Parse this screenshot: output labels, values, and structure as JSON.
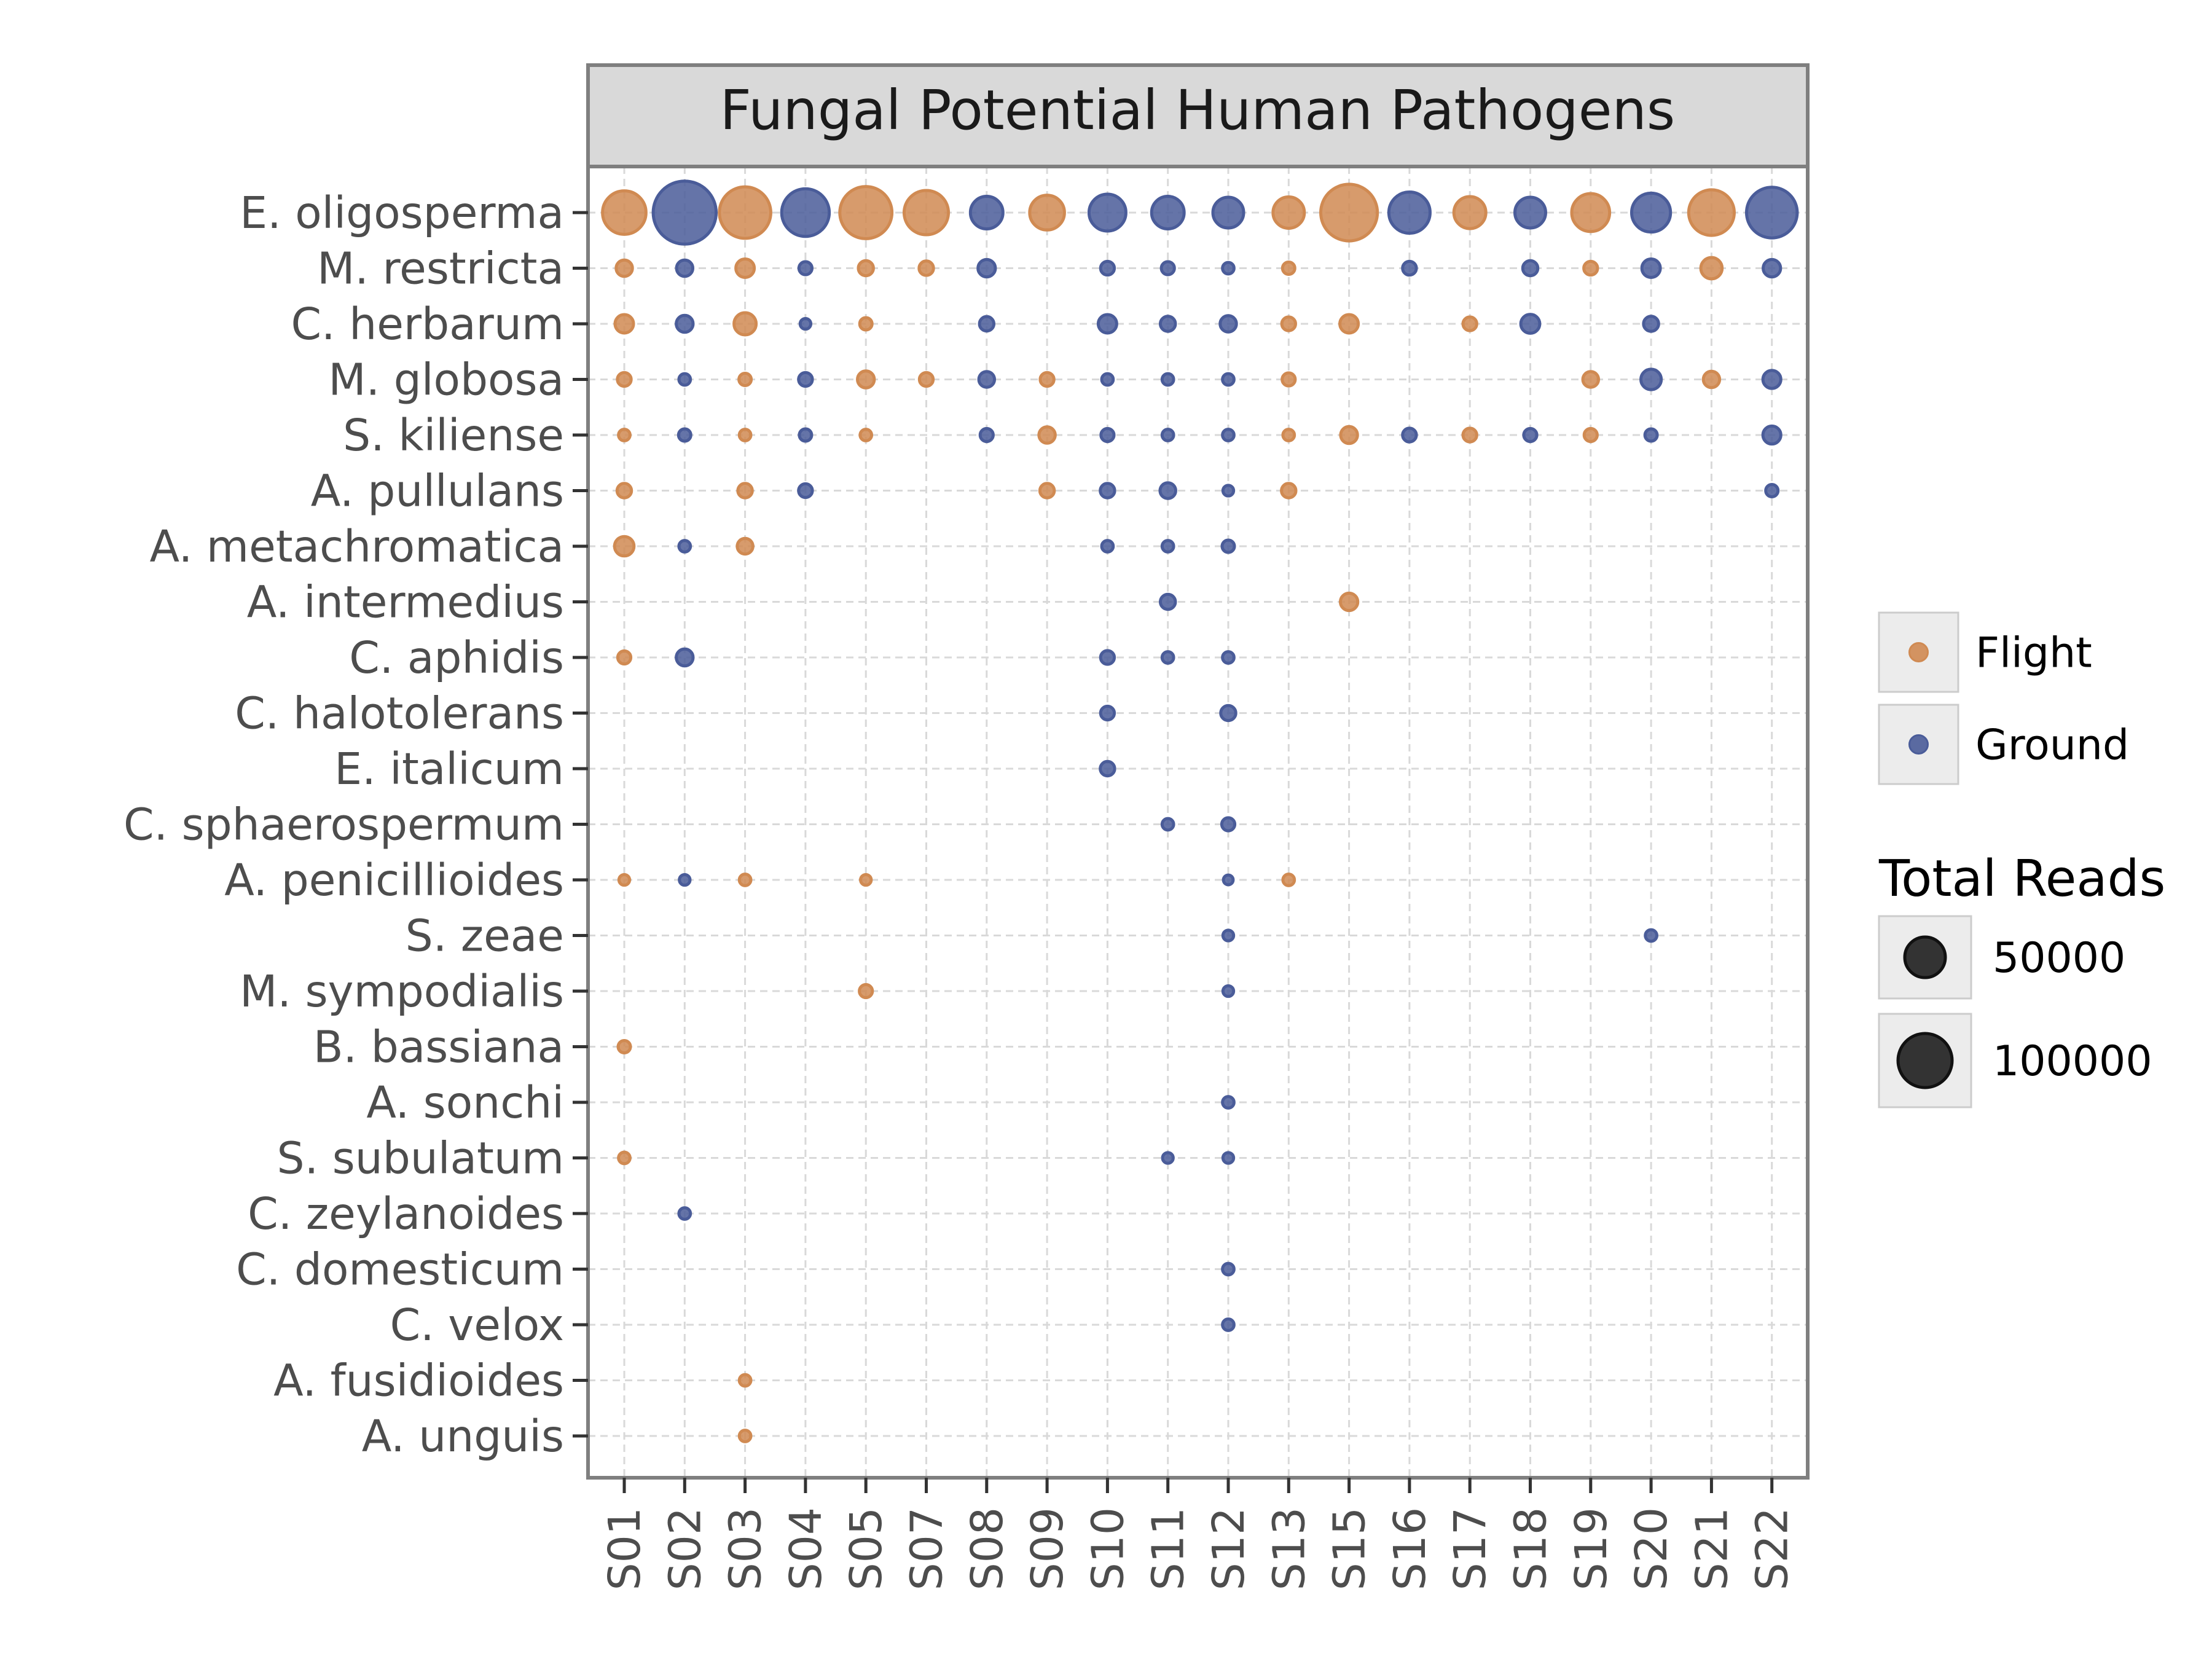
{
  "chart_data": {
    "type": "scatter",
    "title": "Fungal Potential Human Pathogens",
    "xlabel": "",
    "ylabel": "",
    "x_categories": [
      "S01",
      "S02",
      "S03",
      "S04",
      "S05",
      "S07",
      "S08",
      "S09",
      "S10",
      "S11",
      "S12",
      "S13",
      "S15",
      "S16",
      "S17",
      "S18",
      "S19",
      "S20",
      "S21",
      "S22"
    ],
    "y_categories": [
      "E. oligosperma",
      "M. restricta",
      "C. herbarum",
      "M. globosa",
      "S. kiliense",
      "A. pullulans",
      "A. metachromatica",
      "A. intermedius",
      "C. aphidis",
      "C. halotolerans",
      "E. italicum",
      "C. sphaerospermum",
      "A. penicillioides",
      "S. zeae",
      "M. sympodialis",
      "B. bassiana",
      "A. sonchi",
      "S. subulatum",
      "C. zeylanoides",
      "C. domesticum",
      "C. velox",
      "A. fusidioides",
      "A. unguis"
    ],
    "grid": true,
    "legend_position": "right",
    "size_variable": "Total Reads",
    "color_legend": [
      {
        "label": "Flight",
        "color": "#d08a52"
      },
      {
        "label": "Ground",
        "color": "#4a5c99"
      }
    ],
    "size_legend": {
      "title": "Total Reads",
      "entries": [
        {
          "label": "50000",
          "value": 50000
        },
        {
          "label": "100000",
          "value": 100000
        }
      ]
    },
    "points": [
      {
        "x": "S01",
        "y": "E. oligosperma",
        "group": "Flight",
        "reads": 50000
      },
      {
        "x": "S02",
        "y": "E. oligosperma",
        "group": "Ground",
        "reads": 105000
      },
      {
        "x": "S03",
        "y": "E. oligosperma",
        "group": "Flight",
        "reads": 70000
      },
      {
        "x": "S04",
        "y": "E. oligosperma",
        "group": "Ground",
        "reads": 60000
      },
      {
        "x": "S05",
        "y": "E. oligosperma",
        "group": "Flight",
        "reads": 72000
      },
      {
        "x": "S07",
        "y": "E. oligosperma",
        "group": "Flight",
        "reads": 52000
      },
      {
        "x": "S08",
        "y": "E. oligosperma",
        "group": "Ground",
        "reads": 28000
      },
      {
        "x": "S09",
        "y": "E. oligosperma",
        "group": "Flight",
        "reads": 32000
      },
      {
        "x": "S10",
        "y": "E. oligosperma",
        "group": "Ground",
        "reads": 36000
      },
      {
        "x": "S11",
        "y": "E. oligosperma",
        "group": "Ground",
        "reads": 28000
      },
      {
        "x": "S12",
        "y": "E. oligosperma",
        "group": "Ground",
        "reads": 25000
      },
      {
        "x": "S13",
        "y": "E. oligosperma",
        "group": "Flight",
        "reads": 26000
      },
      {
        "x": "S15",
        "y": "E. oligosperma",
        "group": "Flight",
        "reads": 85000
      },
      {
        "x": "S16",
        "y": "E. oligosperma",
        "group": "Ground",
        "reads": 45000
      },
      {
        "x": "S17",
        "y": "E. oligosperma",
        "group": "Flight",
        "reads": 27000
      },
      {
        "x": "S18",
        "y": "E. oligosperma",
        "group": "Ground",
        "reads": 25000
      },
      {
        "x": "S19",
        "y": "E. oligosperma",
        "group": "Flight",
        "reads": 38000
      },
      {
        "x": "S20",
        "y": "E. oligosperma",
        "group": "Ground",
        "reads": 40000
      },
      {
        "x": "S21",
        "y": "E. oligosperma",
        "group": "Flight",
        "reads": 55000
      },
      {
        "x": "S22",
        "y": "E. oligosperma",
        "group": "Ground",
        "reads": 68000
      },
      {
        "x": "S01",
        "y": "M. restricta",
        "group": "Flight",
        "reads": 7000
      },
      {
        "x": "S02",
        "y": "M. restricta",
        "group": "Ground",
        "reads": 7000
      },
      {
        "x": "S03",
        "y": "M. restricta",
        "group": "Flight",
        "reads": 9000
      },
      {
        "x": "S04",
        "y": "M. restricta",
        "group": "Ground",
        "reads": 4500
      },
      {
        "x": "S05",
        "y": "M. restricta",
        "group": "Flight",
        "reads": 6000
      },
      {
        "x": "S07",
        "y": "M. restricta",
        "group": "Flight",
        "reads": 5500
      },
      {
        "x": "S08",
        "y": "M. restricta",
        "group": "Ground",
        "reads": 8000
      },
      {
        "x": "S10",
        "y": "M. restricta",
        "group": "Ground",
        "reads": 5000
      },
      {
        "x": "S11",
        "y": "M. restricta",
        "group": "Ground",
        "reads": 4500
      },
      {
        "x": "S12",
        "y": "M. restricta",
        "group": "Ground",
        "reads": 3500
      },
      {
        "x": "S13",
        "y": "M. restricta",
        "group": "Flight",
        "reads": 4000
      },
      {
        "x": "S16",
        "y": "M. restricta",
        "group": "Ground",
        "reads": 5000
      },
      {
        "x": "S18",
        "y": "M. restricta",
        "group": "Ground",
        "reads": 6000
      },
      {
        "x": "S19",
        "y": "M. restricta",
        "group": "Flight",
        "reads": 5000
      },
      {
        "x": "S20",
        "y": "M. restricta",
        "group": "Ground",
        "reads": 9000
      },
      {
        "x": "S21",
        "y": "M. restricta",
        "group": "Flight",
        "reads": 12000
      },
      {
        "x": "S22",
        "y": "M. restricta",
        "group": "Ground",
        "reads": 8000
      },
      {
        "x": "S01",
        "y": "C. herbarum",
        "group": "Flight",
        "reads": 9000
      },
      {
        "x": "S02",
        "y": "C. herbarum",
        "group": "Ground",
        "reads": 7500
      },
      {
        "x": "S03",
        "y": "C. herbarum",
        "group": "Flight",
        "reads": 13000
      },
      {
        "x": "S04",
        "y": "C. herbarum",
        "group": "Ground",
        "reads": 3000
      },
      {
        "x": "S05",
        "y": "C. herbarum",
        "group": "Flight",
        "reads": 4000
      },
      {
        "x": "S08",
        "y": "C. herbarum",
        "group": "Ground",
        "reads": 5500
      },
      {
        "x": "S10",
        "y": "C. herbarum",
        "group": "Ground",
        "reads": 9000
      },
      {
        "x": "S11",
        "y": "C. herbarum",
        "group": "Ground",
        "reads": 6000
      },
      {
        "x": "S12",
        "y": "C. herbarum",
        "group": "Ground",
        "reads": 7000
      },
      {
        "x": "S13",
        "y": "C. herbarum",
        "group": "Flight",
        "reads": 5000
      },
      {
        "x": "S15",
        "y": "C. herbarum",
        "group": "Flight",
        "reads": 9000
      },
      {
        "x": "S17",
        "y": "C. herbarum",
        "group": "Flight",
        "reads": 5000
      },
      {
        "x": "S18",
        "y": "C. herbarum",
        "group": "Ground",
        "reads": 9500
      },
      {
        "x": "S20",
        "y": "C. herbarum",
        "group": "Ground",
        "reads": 6000
      },
      {
        "x": "S01",
        "y": "M. globosa",
        "group": "Flight",
        "reads": 5000
      },
      {
        "x": "S02",
        "y": "M. globosa",
        "group": "Ground",
        "reads": 3500
      },
      {
        "x": "S03",
        "y": "M. globosa",
        "group": "Flight",
        "reads": 4000
      },
      {
        "x": "S04",
        "y": "M. globosa",
        "group": "Ground",
        "reads": 5000
      },
      {
        "x": "S05",
        "y": "M. globosa",
        "group": "Flight",
        "reads": 7500
      },
      {
        "x": "S07",
        "y": "M. globosa",
        "group": "Flight",
        "reads": 5000
      },
      {
        "x": "S08",
        "y": "M. globosa",
        "group": "Ground",
        "reads": 6500
      },
      {
        "x": "S09",
        "y": "M. globosa",
        "group": "Flight",
        "reads": 5000
      },
      {
        "x": "S10",
        "y": "M. globosa",
        "group": "Ground",
        "reads": 3500
      },
      {
        "x": "S11",
        "y": "M. globosa",
        "group": "Ground",
        "reads": 3500
      },
      {
        "x": "S12",
        "y": "M. globosa",
        "group": "Ground",
        "reads": 3500
      },
      {
        "x": "S13",
        "y": "M. globosa",
        "group": "Flight",
        "reads": 4500
      },
      {
        "x": "S19",
        "y": "M. globosa",
        "group": "Flight",
        "reads": 6500
      },
      {
        "x": "S20",
        "y": "M. globosa",
        "group": "Ground",
        "reads": 11000
      },
      {
        "x": "S21",
        "y": "M. globosa",
        "group": "Flight",
        "reads": 7000
      },
      {
        "x": "S22",
        "y": "M. globosa",
        "group": "Ground",
        "reads": 8500
      },
      {
        "x": "S01",
        "y": "S. kiliense",
        "group": "Flight",
        "reads": 3500
      },
      {
        "x": "S02",
        "y": "S. kiliense",
        "group": "Ground",
        "reads": 4000
      },
      {
        "x": "S03",
        "y": "S. kiliense",
        "group": "Flight",
        "reads": 3500
      },
      {
        "x": "S04",
        "y": "S. kiliense",
        "group": "Ground",
        "reads": 4000
      },
      {
        "x": "S05",
        "y": "S. kiliense",
        "group": "Flight",
        "reads": 3500
      },
      {
        "x": "S08",
        "y": "S. kiliense",
        "group": "Ground",
        "reads": 4500
      },
      {
        "x": "S09",
        "y": "S. kiliense",
        "group": "Flight",
        "reads": 7000
      },
      {
        "x": "S10",
        "y": "S. kiliense",
        "group": "Ground",
        "reads": 4500
      },
      {
        "x": "S11",
        "y": "S. kiliense",
        "group": "Ground",
        "reads": 3500
      },
      {
        "x": "S12",
        "y": "S. kiliense",
        "group": "Ground",
        "reads": 3500
      },
      {
        "x": "S13",
        "y": "S. kiliense",
        "group": "Flight",
        "reads": 3500
      },
      {
        "x": "S15",
        "y": "S. kiliense",
        "group": "Flight",
        "reads": 7500
      },
      {
        "x": "S16",
        "y": "S. kiliense",
        "group": "Ground",
        "reads": 5000
      },
      {
        "x": "S17",
        "y": "S. kiliense",
        "group": "Flight",
        "reads": 5000
      },
      {
        "x": "S18",
        "y": "S. kiliense",
        "group": "Ground",
        "reads": 4500
      },
      {
        "x": "S19",
        "y": "S. kiliense",
        "group": "Flight",
        "reads": 4500
      },
      {
        "x": "S20",
        "y": "S. kiliense",
        "group": "Ground",
        "reads": 4000
      },
      {
        "x": "S22",
        "y": "S. kiliense",
        "group": "Ground",
        "reads": 8500
      },
      {
        "x": "S01",
        "y": "A. pullulans",
        "group": "Flight",
        "reads": 5500
      },
      {
        "x": "S03",
        "y": "A. pullulans",
        "group": "Flight",
        "reads": 5500
      },
      {
        "x": "S04",
        "y": "A. pullulans",
        "group": "Ground",
        "reads": 5000
      },
      {
        "x": "S09",
        "y": "A. pullulans",
        "group": "Flight",
        "reads": 5500
      },
      {
        "x": "S10",
        "y": "A. pullulans",
        "group": "Ground",
        "reads": 5500
      },
      {
        "x": "S11",
        "y": "A. pullulans",
        "group": "Ground",
        "reads": 6500
      },
      {
        "x": "S12",
        "y": "A. pullulans",
        "group": "Ground",
        "reads": 3000
      },
      {
        "x": "S13",
        "y": "A. pullulans",
        "group": "Flight",
        "reads": 5500
      },
      {
        "x": "S22",
        "y": "A. pullulans",
        "group": "Ground",
        "reads": 4000
      },
      {
        "x": "S01",
        "y": "A. metachromatica",
        "group": "Flight",
        "reads": 10000
      },
      {
        "x": "S02",
        "y": "A. metachromatica",
        "group": "Ground",
        "reads": 3500
      },
      {
        "x": "S03",
        "y": "A. metachromatica",
        "group": "Flight",
        "reads": 6500
      },
      {
        "x": "S10",
        "y": "A. metachromatica",
        "group": "Ground",
        "reads": 3500
      },
      {
        "x": "S11",
        "y": "A. metachromatica",
        "group": "Ground",
        "reads": 3500
      },
      {
        "x": "S12",
        "y": "A. metachromatica",
        "group": "Ground",
        "reads": 4000
      },
      {
        "x": "S11",
        "y": "A. intermedius",
        "group": "Ground",
        "reads": 6000
      },
      {
        "x": "S15",
        "y": "A. intermedius",
        "group": "Flight",
        "reads": 8000
      },
      {
        "x": "S01",
        "y": "C. aphidis",
        "group": "Flight",
        "reads": 4500
      },
      {
        "x": "S02",
        "y": "C. aphidis",
        "group": "Ground",
        "reads": 7500
      },
      {
        "x": "S10",
        "y": "C. aphidis",
        "group": "Ground",
        "reads": 5000
      },
      {
        "x": "S11",
        "y": "C. aphidis",
        "group": "Ground",
        "reads": 3500
      },
      {
        "x": "S12",
        "y": "C. aphidis",
        "group": "Ground",
        "reads": 3500
      },
      {
        "x": "S10",
        "y": "C. halotolerans",
        "group": "Ground",
        "reads": 5000
      },
      {
        "x": "S12",
        "y": "C. halotolerans",
        "group": "Ground",
        "reads": 6000
      },
      {
        "x": "S10",
        "y": "E. italicum",
        "group": "Ground",
        "reads": 5500
      },
      {
        "x": "S11",
        "y": "C. sphaerospermum",
        "group": "Ground",
        "reads": 3500
      },
      {
        "x": "S12",
        "y": "C. sphaerospermum",
        "group": "Ground",
        "reads": 4500
      },
      {
        "x": "S01",
        "y": "A. penicillioides",
        "group": "Flight",
        "reads": 3000
      },
      {
        "x": "S02",
        "y": "A. penicillioides",
        "group": "Ground",
        "reads": 3000
      },
      {
        "x": "S03",
        "y": "A. penicillioides",
        "group": "Flight",
        "reads": 3500
      },
      {
        "x": "S05",
        "y": "A. penicillioides",
        "group": "Flight",
        "reads": 3000
      },
      {
        "x": "S12",
        "y": "A. penicillioides",
        "group": "Ground",
        "reads": 2500
      },
      {
        "x": "S13",
        "y": "A. penicillioides",
        "group": "Flight",
        "reads": 3500
      },
      {
        "x": "S12",
        "y": "S. zeae",
        "group": "Ground",
        "reads": 3000
      },
      {
        "x": "S20",
        "y": "S. zeae",
        "group": "Ground",
        "reads": 3500
      },
      {
        "x": "S05",
        "y": "M. sympodialis",
        "group": "Flight",
        "reads": 4500
      },
      {
        "x": "S12",
        "y": "M. sympodialis",
        "group": "Ground",
        "reads": 3000
      },
      {
        "x": "S01",
        "y": "B. bassiana",
        "group": "Flight",
        "reads": 4000
      },
      {
        "x": "S12",
        "y": "A. sonchi",
        "group": "Ground",
        "reads": 3500
      },
      {
        "x": "S01",
        "y": "S. subulatum",
        "group": "Flight",
        "reads": 3500
      },
      {
        "x": "S11",
        "y": "S. subulatum",
        "group": "Ground",
        "reads": 3000
      },
      {
        "x": "S12",
        "y": "S. subulatum",
        "group": "Ground",
        "reads": 3000
      },
      {
        "x": "S02",
        "y": "C. zeylanoides",
        "group": "Ground",
        "reads": 3500
      },
      {
        "x": "S12",
        "y": "C. domesticum",
        "group": "Ground",
        "reads": 3500
      },
      {
        "x": "S12",
        "y": "C. velox",
        "group": "Ground",
        "reads": 3500
      },
      {
        "x": "S03",
        "y": "A. fusidioides",
        "group": "Flight",
        "reads": 3500
      },
      {
        "x": "S03",
        "y": "A. unguis",
        "group": "Flight",
        "reads": 3500
      }
    ]
  }
}
